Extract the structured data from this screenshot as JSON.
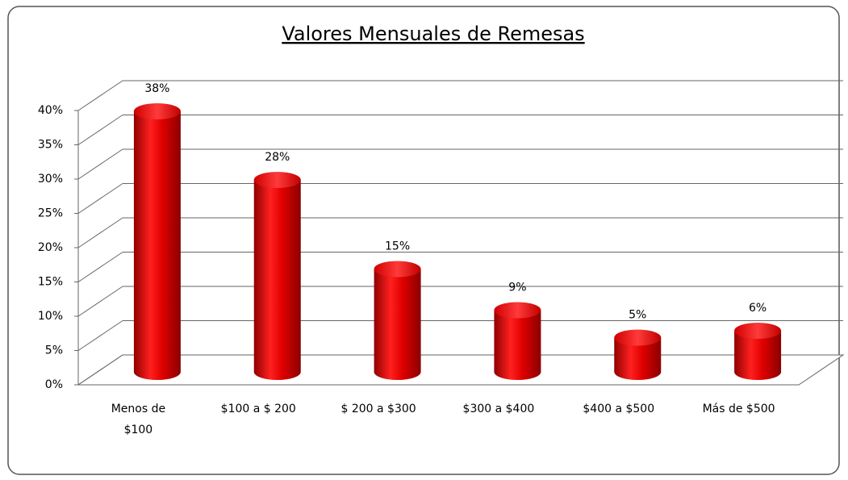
{
  "chart_data": {
    "type": "bar",
    "title": "Valores Mensuales de Remesas",
    "categories": [
      "Menos de $100",
      "$100 a $ 200",
      "$ 200 a $300",
      "$300 a $400",
      "$400 a $500",
      "Más de $500"
    ],
    "values": [
      38,
      28,
      15,
      9,
      5,
      6
    ],
    "value_labels": [
      "38%",
      "28%",
      "15%",
      "9%",
      "5%",
      "6%"
    ],
    "color": "#e00000",
    "ylim": [
      0,
      40
    ],
    "yticks": [
      {
        "value": 0,
        "label": "0%"
      },
      {
        "value": 5,
        "label": "5%"
      },
      {
        "value": 10,
        "label": "10%"
      },
      {
        "value": 15,
        "label": "15%"
      },
      {
        "value": 20,
        "label": "20%"
      },
      {
        "value": 25,
        "label": "25%"
      },
      {
        "value": 30,
        "label": "30%"
      },
      {
        "value": 35,
        "label": "35%"
      },
      {
        "value": 40,
        "label": "40%"
      }
    ],
    "grid": true
  }
}
